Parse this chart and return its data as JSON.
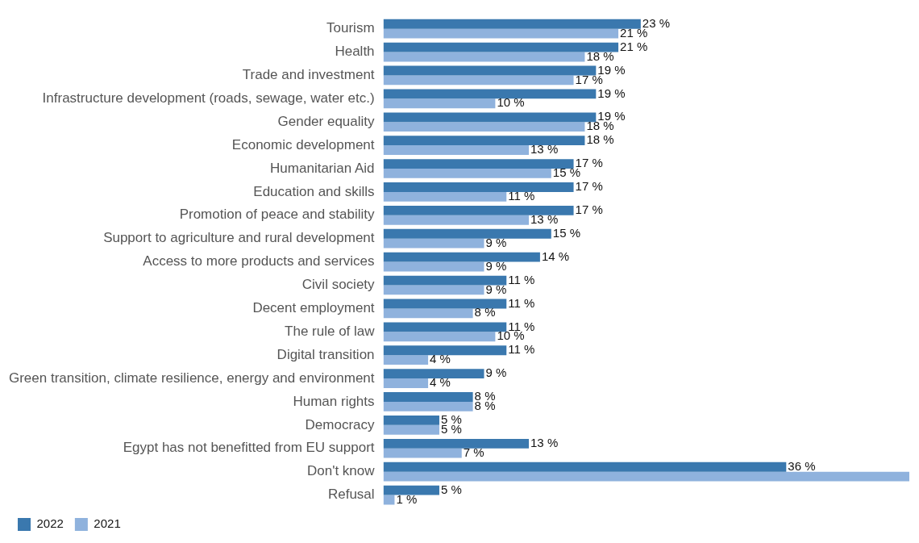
{
  "chart_data": {
    "type": "bar",
    "orientation": "horizontal",
    "categories": [
      "Tourism",
      "Health",
      "Trade and investment",
      "Infrastructure development (roads, sewage, water etc.)",
      "Gender equality",
      "Economic development",
      "Humanitarian Aid",
      "Education and skills",
      "Promotion of peace and stability",
      "Support to agriculture and rural development",
      "Access to more products and services",
      "Civil society",
      "Decent employment",
      "The rule of law",
      "Digital transition",
      "Green transition, climate resilience, energy and environment",
      "Human rights",
      "Democracy",
      "Egypt has not benefitted from EU support",
      "Don't know",
      "Refusal"
    ],
    "series": [
      {
        "name": "2022",
        "color": "#3a78ae",
        "values": [
          23,
          21,
          19,
          19,
          19,
          18,
          17,
          17,
          17,
          15,
          14,
          11,
          11,
          11,
          11,
          9,
          8,
          5,
          13,
          36,
          5
        ],
        "value_labels": [
          "23 %",
          "21 %",
          "19 %",
          "19 %",
          "19 %",
          "18 %",
          "17 %",
          "17 %",
          "17 %",
          "15 %",
          "14 %",
          "11 %",
          "11 %",
          "11 %",
          "11 %",
          "9 %",
          "8 %",
          "5 %",
          "13 %",
          "36 %",
          "5 %"
        ]
      },
      {
        "name": "2021",
        "color": "#8fb2dd",
        "values": [
          21,
          18,
          17,
          10,
          18,
          13,
          15,
          11,
          13,
          9,
          9,
          9,
          8,
          10,
          4,
          4,
          8,
          5,
          7,
          47,
          1
        ],
        "value_labels": [
          "21 %",
          "18 %",
          "17 %",
          "10 %",
          "18 %",
          "13 %",
          "15 %",
          "11 %",
          "13 %",
          "9 %",
          "9 %",
          "9 %",
          "8 %",
          "10 %",
          "4 %",
          "4 %",
          "8 %",
          "5 %",
          "7 %",
          null,
          "1 %"
        ]
      }
    ],
    "xlim": [
      0,
      47
    ],
    "legend": "bottom"
  }
}
